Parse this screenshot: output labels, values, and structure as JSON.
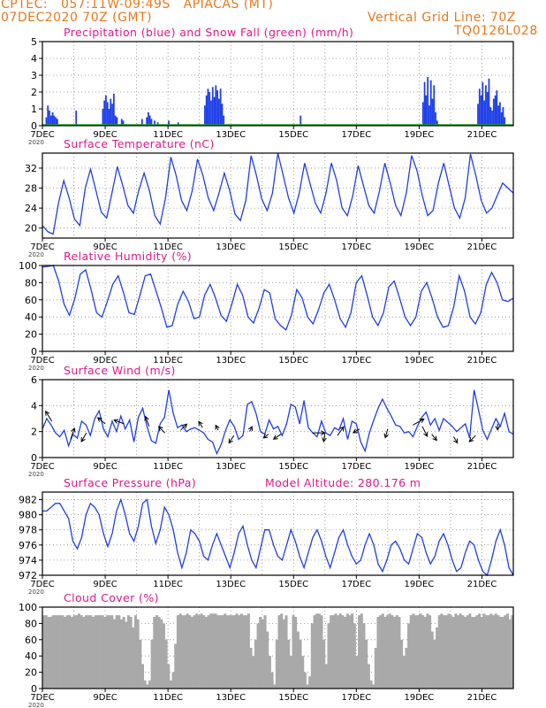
{
  "header": {
    "line1": "CPTEC:   057:11W-09:49S   APIACAS (MT)",
    "line2_left": "07DEC2020 70Z (GMT)",
    "line2_right": "Vertical Grid Line: 70Z",
    "code": "TQ0126L028"
  },
  "colors": {
    "header": "#e8781e",
    "title": "#e0198a",
    "series": "#1f3fe8",
    "snow": "#22aa22",
    "cloud": "#a9a9a9"
  },
  "x_ticks": [
    "7DEC",
    "9DEC",
    "11DEC",
    "13DEC",
    "15DEC",
    "17DEC",
    "19DEC",
    "21DEC"
  ],
  "x_sub_label": "2020",
  "chart_data": [
    {
      "type": "bar",
      "title": "Precipitation (blue) and Snow Fall (green) (mm/h)",
      "ylim": [
        0,
        5
      ],
      "yticks": [
        "0",
        "1",
        "2",
        "3",
        "4",
        "5"
      ],
      "x_unit": "days from 7DEC 00Z",
      "xlim": [
        0,
        15
      ],
      "series": [
        {
          "name": "Precipitation",
          "x": [
            0.1,
            0.15,
            0.2,
            0.25,
            0.3,
            0.35,
            0.4,
            0.45,
            1.05,
            1.9,
            1.95,
            2.0,
            2.05,
            2.1,
            2.15,
            2.2,
            2.25,
            2.3,
            2.35,
            2.5,
            2.55,
            3.15,
            3.3,
            3.35,
            3.4,
            3.45,
            3.55,
            3.65,
            4.0,
            4.3,
            5.15,
            5.2,
            5.25,
            5.3,
            5.35,
            5.4,
            5.45,
            5.5,
            5.55,
            5.6,
            5.65,
            5.7,
            5.75,
            8.2,
            12.1,
            12.15,
            12.2,
            12.25,
            12.3,
            12.35,
            12.4,
            12.45,
            12.5,
            12.55,
            13.85,
            13.9,
            13.95,
            14.0,
            14.05,
            14.1,
            14.15,
            14.2,
            14.25,
            14.3,
            14.35,
            14.4,
            14.45,
            14.5,
            14.55,
            14.6,
            14.65,
            14.7
          ],
          "values": [
            0.5,
            1.2,
            0.9,
            0.6,
            0.8,
            0.6,
            0.5,
            0.4,
            0.9,
            1.0,
            1.5,
            1.8,
            1.4,
            1.0,
            1.6,
            1.3,
            1.9,
            0.6,
            0.5,
            0.4,
            0.3,
            0.4,
            0.5,
            0.8,
            0.6,
            0.4,
            0.3,
            0.2,
            0.3,
            0.2,
            1.2,
            1.8,
            2.2,
            2.0,
            1.5,
            2.3,
            1.7,
            2.4,
            2.1,
            1.6,
            2.2,
            1.3,
            0.6,
            0.6,
            1.4,
            2.6,
            1.8,
            2.9,
            1.2,
            2.7,
            1.6,
            2.4,
            0.8,
            0.3,
            1.3,
            2.2,
            1.8,
            2.6,
            1.5,
            2.4,
            2.0,
            2.8,
            1.1,
            0.9,
            1.6,
            1.8,
            2.1,
            1.2,
            1.4,
            0.8,
            1.1,
            0.5
          ]
        },
        {
          "name": "Snow Fall",
          "x": [],
          "values": []
        }
      ]
    },
    {
      "type": "line",
      "title": "Surface Temperature (nC)",
      "ylim": [
        18,
        35
      ],
      "yticks": [
        "20",
        "24",
        "28",
        "32"
      ],
      "x_unit": "days from 7DEC 00Z",
      "xlim": [
        0,
        15
      ],
      "series": [
        {
          "name": "",
          "values": [
            20.5,
            19.3,
            18.8,
            25,
            29.5,
            26,
            21.8,
            20.5,
            28,
            31.8,
            27.5,
            23.2,
            22,
            27,
            32.3,
            28.5,
            24.5,
            23,
            27.5,
            31,
            27.5,
            22.5,
            20.8,
            26,
            34.2,
            30.5,
            25.5,
            23.5,
            27.5,
            33.8,
            30.5,
            26,
            23.5,
            27,
            31,
            27.5,
            22.8,
            21.5,
            25.5,
            34.5,
            30.5,
            25.8,
            23.5,
            27,
            35,
            30.5,
            26,
            23,
            27,
            33,
            29,
            25,
            23,
            27,
            33,
            29.5,
            24,
            22.5,
            26.5,
            32.5,
            28.5,
            24.5,
            23,
            27.5,
            33,
            29,
            24.5,
            22.5,
            27,
            34.5,
            31.5,
            26.5,
            22.5,
            23.5,
            29,
            33,
            28.5,
            24,
            22,
            26,
            34.8,
            30.5,
            25.5,
            23,
            24,
            26.5,
            29,
            28,
            27
          ]
        }
      ]
    },
    {
      "type": "line",
      "title": "Relative Humidity (%)",
      "ylim": [
        0,
        100
      ],
      "yticks": [
        "0",
        "20",
        "40",
        "60",
        "80",
        "100"
      ],
      "x_unit": "days from 7DEC 00Z",
      "xlim": [
        0,
        15
      ],
      "series": [
        {
          "name": "",
          "values": [
            98,
            99,
            100,
            82,
            55,
            42,
            62,
            90,
            95,
            72,
            45,
            40,
            58,
            78,
            88,
            68,
            45,
            43,
            65,
            88,
            90,
            70,
            50,
            28,
            30,
            55,
            70,
            58,
            38,
            40,
            66,
            78,
            62,
            42,
            35,
            55,
            78,
            65,
            40,
            33,
            50,
            72,
            68,
            38,
            30,
            25,
            42,
            72,
            62,
            40,
            32,
            48,
            68,
            78,
            60,
            38,
            28,
            45,
            80,
            88,
            65,
            40,
            30,
            45,
            75,
            82,
            62,
            40,
            30,
            40,
            70,
            80,
            62,
            40,
            28,
            30,
            52,
            88,
            70,
            40,
            32,
            45,
            78,
            92,
            80,
            60,
            58,
            62
          ]
        }
      ]
    },
    {
      "type": "line",
      "title": "Surface Wind (m/s)",
      "ylim": [
        0,
        6
      ],
      "yticks": [
        "0",
        "2",
        "4",
        "6"
      ],
      "x_unit": "days from 7DEC 00Z",
      "xlim": [
        0,
        15
      ],
      "series": [
        {
          "name": "",
          "values": [
            2.2,
            3.0,
            2.5,
            1.9,
            1.6,
            2.1,
            0.9,
            1.8,
            1.5,
            2.8,
            2.5,
            1.7,
            3.0,
            3.6,
            2.2,
            1.6,
            2.8,
            2.0,
            3.2,
            2.2,
            2.9,
            1.2,
            3.1,
            3.8,
            2.4,
            1.3,
            1.1,
            2.6,
            3.1,
            5.2,
            3.4,
            2.3,
            2.5,
            2.0,
            2.2,
            2.3,
            2.1,
            1.9,
            1.4,
            1.2,
            0.3,
            1.0,
            2.1,
            2.9,
            2.4,
            1.4,
            1.7,
            4.1,
            4.3,
            3.4,
            2.0,
            1.8,
            2.9,
            2.2,
            2.4,
            1.7,
            2.6,
            4.1,
            3.9,
            2.6,
            4.4,
            2.3,
            1.9,
            1.6,
            2.8,
            1.9,
            1.7,
            2.3,
            2.1,
            3.0,
            1.4,
            2.8,
            2.6,
            1.2,
            0.5,
            1.9,
            2.9,
            3.8,
            4.5,
            3.8,
            3.2,
            2.5,
            2.4,
            1.9,
            2.0,
            1.6,
            2.4,
            3.1,
            3.5,
            2.5,
            3.0,
            2.1,
            3.0,
            2.7,
            2.4,
            2.0,
            2.3,
            2.6,
            1.5,
            5.2,
            3.7,
            2.1,
            1.4,
            2.2,
            3.0,
            2.4,
            3.4,
            2.0,
            1.8
          ]
        }
      ],
      "wind_vectors": [
        [
          0.3,
          2.8,
          -0.5,
          0.8
        ],
        [
          0.9,
          1.4,
          0.3,
          0.9
        ],
        [
          1.4,
          1.9,
          -0.4,
          -0.7
        ],
        [
          2.0,
          2.6,
          -0.6,
          0.5
        ],
        [
          2.6,
          2.6,
          -0.8,
          0.3
        ],
        [
          3.4,
          2.4,
          -0.3,
          0.8
        ],
        [
          3.9,
          1.9,
          -0.5,
          0.5
        ],
        [
          4.4,
          2.1,
          0.5,
          0.5
        ],
        [
          5.1,
          2.3,
          -0.3,
          0.5
        ],
        [
          5.6,
          2.1,
          -0.2,
          0.4
        ],
        [
          6.1,
          1.7,
          -0.4,
          -0.6
        ],
        [
          6.6,
          2.0,
          0.2,
          0.4
        ],
        [
          7.2,
          1.8,
          -0.4,
          -0.3
        ],
        [
          7.6,
          1.8,
          -0.6,
          -0.4
        ],
        [
          8.6,
          1.9,
          1.0,
          0.0
        ],
        [
          9.0,
          1.9,
          -0.1,
          -0.7
        ],
        [
          9.4,
          1.7,
          0.5,
          0.7
        ],
        [
          10.1,
          2.2,
          -0.5,
          -0.3
        ],
        [
          11.0,
          2.2,
          -0.2,
          -0.7
        ],
        [
          11.8,
          2.5,
          0.9,
          0.5
        ],
        [
          12.1,
          2.4,
          0.4,
          -0.8
        ],
        [
          12.4,
          1.8,
          0.4,
          -0.5
        ],
        [
          13.1,
          1.6,
          0.3,
          -0.5
        ],
        [
          13.8,
          1.7,
          -0.5,
          -0.5
        ],
        [
          14.5,
          2.6,
          0.0,
          -0.5
        ]
      ]
    },
    {
      "type": "line",
      "title": "Surface Pressure (hPa)",
      "annotation": "Model Altitude: 280.176 m",
      "ylim": [
        972,
        983
      ],
      "yticks": [
        "972",
        "974",
        "976",
        "978",
        "980",
        "982"
      ],
      "x_unit": "days from 7DEC 00Z",
      "xlim": [
        0,
        15
      ],
      "series": [
        {
          "name": "",
          "values": [
            980.5,
            980.5,
            981,
            981.5,
            981.5,
            980.5,
            979.5,
            976.5,
            975.5,
            977,
            980,
            981.5,
            981,
            980,
            977.5,
            975.8,
            977.5,
            980.5,
            982,
            980,
            977.5,
            976.5,
            978.5,
            981.5,
            982,
            978.5,
            976.2,
            978,
            981,
            980,
            978,
            975,
            973,
            975,
            978,
            977.5,
            976.5,
            974.5,
            974,
            976,
            977.5,
            976,
            974.5,
            973,
            975,
            977.5,
            978.5,
            976,
            974,
            973,
            975.5,
            978,
            978,
            976,
            974.5,
            974,
            976,
            978,
            976.5,
            974.5,
            973,
            975,
            977,
            978,
            976.5,
            974.5,
            973,
            975,
            977,
            978,
            976,
            974.5,
            973.5,
            974,
            976,
            977.5,
            976,
            973.5,
            972.5,
            974,
            976,
            976.5,
            975.5,
            974,
            973.5,
            975.5,
            977.5,
            977,
            975,
            973.5,
            974.5,
            976.5,
            977.5,
            976,
            974,
            972.5,
            973,
            975,
            976.5,
            976,
            974,
            972.5,
            972,
            974,
            976.5,
            978,
            976,
            973,
            972
          ]
        }
      ]
    },
    {
      "type": "bar",
      "title": "Cloud Cover (%)",
      "ylim": [
        0,
        100
      ],
      "yticks": [
        "0",
        "20",
        "40",
        "60",
        "80",
        "100"
      ],
      "x_unit": "days from 7DEC 00Z",
      "xlim": [
        0,
        15
      ],
      "series": [
        {
          "name": "",
          "values": [
            90,
            90,
            88,
            88,
            90,
            90,
            90,
            90,
            90,
            88,
            90,
            90,
            88,
            90,
            90,
            92,
            90,
            88,
            90,
            90,
            90,
            88,
            90,
            90,
            90,
            90,
            88,
            90,
            90,
            90,
            85,
            90,
            90,
            85,
            88,
            82,
            90,
            88,
            75,
            90,
            85,
            60,
            30,
            10,
            5,
            10,
            60,
            88,
            90,
            88,
            85,
            80,
            60,
            30,
            10,
            20,
            55,
            90,
            92,
            90,
            90,
            92,
            90,
            88,
            90,
            92,
            90,
            92,
            90,
            88,
            90,
            92,
            92,
            92,
            90,
            90,
            90,
            92,
            90,
            90,
            90,
            90,
            92,
            90,
            92,
            90,
            90,
            92,
            50,
            40,
            60,
            80,
            88,
            85,
            90,
            70,
            40,
            20,
            5,
            60,
            90,
            92,
            85,
            90,
            60,
            40,
            90,
            88,
            70,
            60,
            40,
            20,
            5,
            15,
            80,
            90,
            92,
            92,
            90,
            60,
            30,
            80,
            90,
            90,
            92,
            90,
            92,
            90,
            88,
            92,
            90,
            92,
            80,
            40,
            90,
            92,
            80,
            60,
            30,
            10,
            5,
            50,
            88,
            90,
            92,
            88,
            90,
            92,
            90,
            88,
            90,
            88,
            60,
            40,
            50,
            80,
            90,
            92,
            90,
            90,
            92,
            90,
            88,
            92,
            90,
            70,
            60,
            75,
            90,
            92,
            90,
            90,
            92,
            90,
            88,
            92,
            90,
            92,
            90,
            88,
            90,
            92,
            88,
            88,
            90,
            92,
            88,
            92,
            90,
            90,
            92,
            90,
            92,
            90,
            88,
            88,
            90,
            92,
            85,
            90
          ]
        }
      ]
    }
  ]
}
